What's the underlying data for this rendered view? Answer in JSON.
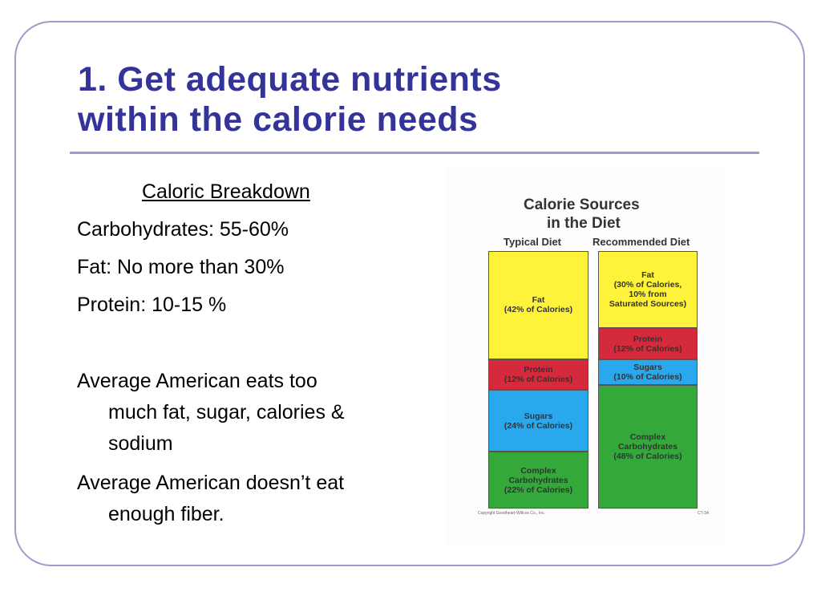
{
  "slide": {
    "title_lines": [
      "1.  Get adequate nutrients",
      "within the calorie needs"
    ],
    "heading": "Caloric Breakdown",
    "breakdown": [
      "Carbohydrates:  55-60%",
      "Fat:  No more than 30%",
      "Protein:  10-15 %"
    ],
    "para1_line1": "Average American eats too",
    "para1_line2": "much fat, sugar, calories &",
    "para1_line3": "sodium",
    "para2_line1": "Average American doesn’t eat",
    "para2_line2": "enough fiber."
  },
  "chart_data": {
    "type": "bar",
    "stacked": true,
    "title_lines": [
      "Calorie Sources",
      "in the Diet"
    ],
    "categories": [
      "Typical Diet",
      "Recommended Diet"
    ],
    "series": [
      {
        "name": "Fat",
        "color": "#fff23a",
        "values": [
          42,
          30
        ],
        "labels": [
          [
            "Fat",
            "(42% of Calories)"
          ],
          [
            "Fat",
            "(30% of Calories,",
            "10% from",
            "Saturated Sources)"
          ]
        ]
      },
      {
        "name": "Protein",
        "color": "#d42a3c",
        "values": [
          12,
          12
        ],
        "labels": [
          [
            "Protein",
            "(12% of Calories)"
          ],
          [
            "Protein",
            "(12% of Calories)"
          ]
        ]
      },
      {
        "name": "Sugars",
        "color": "#2aa8ee",
        "values": [
          24,
          10
        ],
        "labels": [
          [
            "Sugars",
            "(24% of Calories)"
          ],
          [
            "Sugars",
            "(10% of Calories)"
          ]
        ]
      },
      {
        "name": "Complex Carbohydrates",
        "color": "#34a83a",
        "values": [
          22,
          48
        ],
        "labels": [
          [
            "Complex",
            "Carbohydrates",
            "(22% of Calories)"
          ],
          [
            "Complex",
            "Carbohydrates",
            "(48% of Calories)"
          ]
        ]
      }
    ],
    "ylim": [
      0,
      100
    ],
    "copyright": "Copyright Goodheart-Willcox Co., Inc.",
    "figure_code": "CT-3A"
  }
}
